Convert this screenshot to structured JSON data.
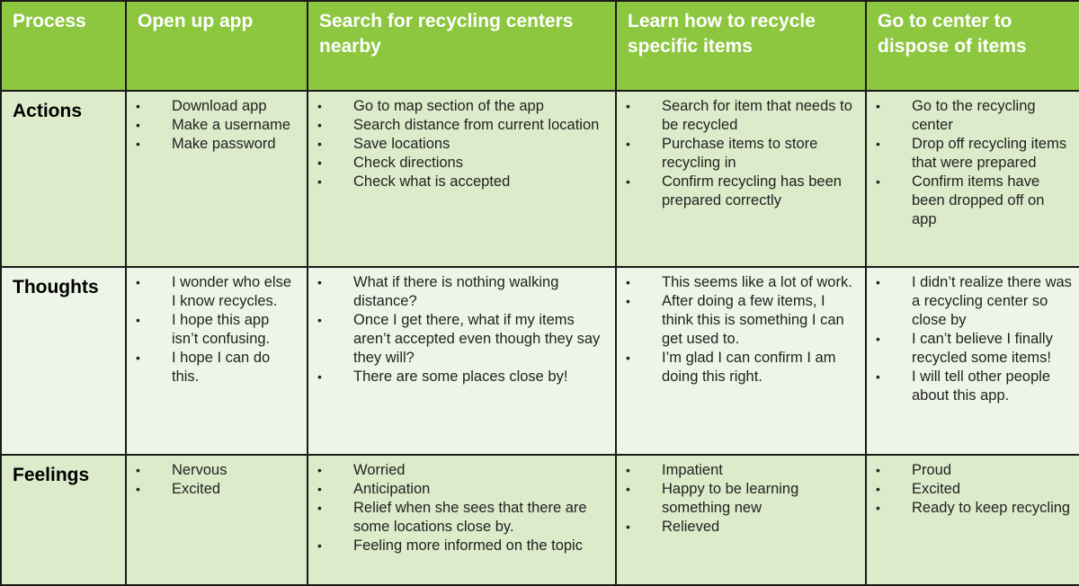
{
  "header": {
    "process": "Process",
    "stages": [
      "Open up app",
      "Search for recycling centers nearby",
      "Learn how to recycle specific items",
      "Go to center to dispose of items"
    ]
  },
  "rows": [
    {
      "label": "Actions",
      "cells": [
        [
          "Download app",
          "Make a username",
          "Make password"
        ],
        [
          "Go to map section of the app",
          "Search distance from current location",
          "Save locations",
          "Check directions",
          "Check what is accepted"
        ],
        [
          "Search for item that needs to be recycled",
          "Purchase items to store recycling in",
          "Confirm recycling has been prepared correctly"
        ],
        [
          "Go to the recycling center",
          "Drop off recycling items that were prepared",
          "Confirm items have been dropped off on app"
        ]
      ]
    },
    {
      "label": "Thoughts",
      "cells": [
        [
          "I wonder who else I know recycles.",
          "I hope this app isn’t confusing.",
          "I hope I can do this."
        ],
        [
          "What if there is nothing walking distance?",
          "Once I get there, what if my items aren’t accepted even though they say they will?",
          "There are some places close by!"
        ],
        [
          "This seems like a lot of work.",
          "After doing a few items, I think this is something I can get used to.",
          "I’m glad I can confirm I am doing this right."
        ],
        [
          "I didn’t realize there was a recycling center so close by",
          "I can’t believe I finally recycled some items!",
          "I will tell other people about this app."
        ]
      ]
    },
    {
      "label": "Feelings",
      "cells": [
        [
          "Nervous",
          "Excited"
        ],
        [
          "Worried",
          "Anticipation",
          "Relief when she sees that there are some locations close by.",
          "Feeling more informed on the topic"
        ],
        [
          "Impatient",
          "Happy to be learning something new",
          "Relieved"
        ],
        [
          "Proud",
          "Excited",
          "Ready to keep recycling"
        ]
      ]
    }
  ],
  "bullet_glyph": "•",
  "colors": {
    "header_bg": "#8dc63f",
    "row_dark_bg": "#dcebc9",
    "row_light_bg": "#eef5e6",
    "border": "#1a1a1a"
  }
}
